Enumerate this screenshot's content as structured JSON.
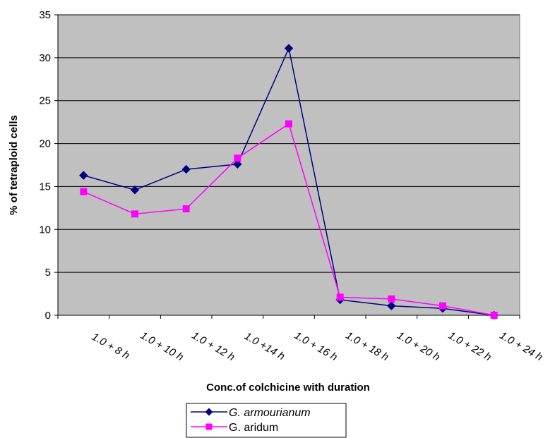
{
  "chart_data": {
    "type": "line",
    "categories": [
      "1.0 + 8 h",
      "1.0 + 10 h",
      "1.0 + 12 h",
      "1.0 +14 h",
      "1.0 + 16 h",
      "1.0 + 18 h",
      "1.0 + 20 h",
      "1.0 + 22 h",
      "1.0 + 24 h"
    ],
    "series": [
      {
        "name": "G. armourianum",
        "color": "#000080",
        "marker": "diamond",
        "values": [
          16.3,
          14.6,
          17.0,
          17.6,
          31.1,
          1.8,
          1.1,
          0.8,
          0.0
        ]
      },
      {
        "name": "G. aridum",
        "color": "#ff00ff",
        "marker": "square",
        "values": [
          14.4,
          11.8,
          12.4,
          18.3,
          22.3,
          2.1,
          1.9,
          1.1,
          0.0
        ]
      }
    ],
    "xlabel": "Conc.of colchicine with duration",
    "ylabel": "% of tetraploid cells",
    "ylim": [
      0,
      35
    ],
    "yticks": [
      0,
      5,
      10,
      15,
      20,
      25,
      30,
      35
    ],
    "grid": true,
    "plot_background": "#c0c0c0",
    "legend_position": "bottom"
  }
}
